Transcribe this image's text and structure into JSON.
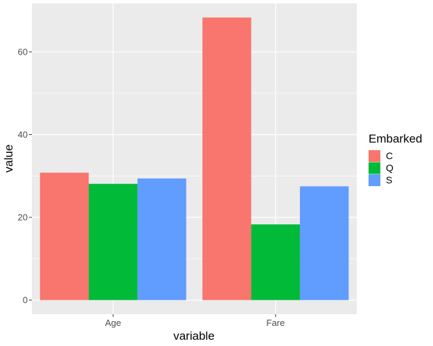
{
  "chart_data": {
    "type": "bar",
    "categories": [
      "Age",
      "Fare"
    ],
    "series": [
      {
        "name": "C",
        "values": [
          30.8,
          68.3
        ],
        "color": "#F8766D"
      },
      {
        "name": "Q",
        "values": [
          28.1,
          18.3
        ],
        "color": "#00BA38"
      },
      {
        "name": "S",
        "values": [
          29.4,
          27.5
        ],
        "color": "#619CFF"
      }
    ],
    "xlabel": "variable",
    "ylabel": "value",
    "ylim": [
      -3.4,
      71.7
    ],
    "yticks": [
      0,
      20,
      40,
      60
    ],
    "ytick_labels": [
      "0",
      "20",
      "40",
      "60"
    ],
    "legend": {
      "title": "Embarked",
      "position": "right"
    },
    "grid": true,
    "panel_background": "#EBEBEB"
  }
}
